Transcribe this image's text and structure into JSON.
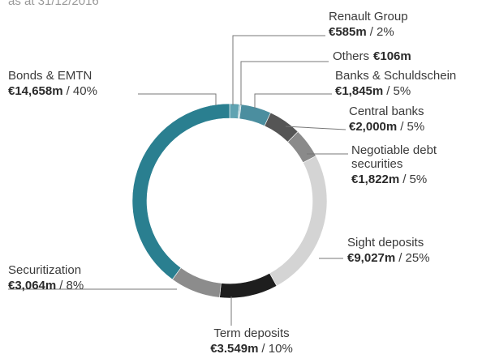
{
  "chart_data": {
    "type": "pie",
    "donut": true,
    "subtitle": "as at 31/12/2016",
    "categories": [
      "Renault Group",
      "Others",
      "Banks & Schuldschein",
      "Central banks",
      "Negotiable debt securities",
      "Sight deposits",
      "Term deposits",
      "Securitization",
      "Bonds & EMTN"
    ],
    "values": [
      585,
      106,
      1845,
      2000,
      1822,
      9027,
      3549,
      3064,
      14658
    ],
    "value_labels": [
      "€585m",
      "€106m",
      "€1,845m",
      "€2,000m",
      "€1,822m",
      "€9,027m",
      "€3.549m",
      "€3,064m",
      "€14,658m"
    ],
    "shares": [
      {
        "value": 2,
        "label": "/ 2%"
      },
      null,
      {
        "value": 5,
        "label": "/ 5%"
      },
      {
        "value": 5,
        "label": "/ 5%"
      },
      {
        "value": 5,
        "label": "/ 5%"
      },
      {
        "value": 25,
        "label": "/ 25%"
      },
      {
        "value": 10,
        "label": "/ 10%"
      },
      {
        "value": 8,
        "label": "/ 8%"
      },
      {
        "value": 40,
        "label": "/ 40%"
      }
    ],
    "colors": [
      "#5fa3b2",
      "#a9cdd6",
      "#4b8e9f",
      "#555555",
      "#8a8a8a",
      "#d4d4d4",
      "#1e1e1e",
      "#8c8c8c",
      "#2a7f90"
    ]
  }
}
